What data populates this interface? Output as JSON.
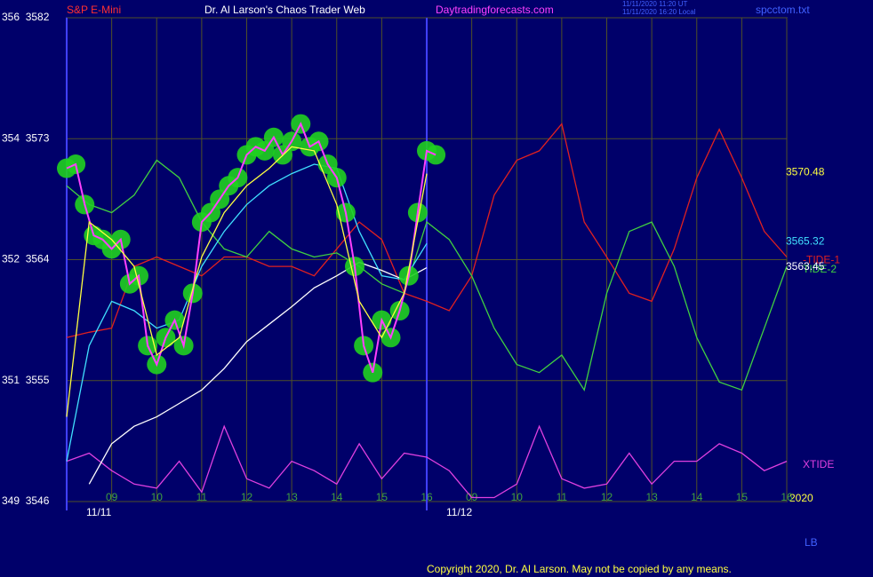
{
  "chart_data": {
    "type": "line",
    "title": "Dr. Al Larson's Chaos Trader Web",
    "subtitle": "S&P E-Mini",
    "site": "Daytradingforecasts.com",
    "time_lines": [
      "11/11/2020 11:20 UT",
      "11/11/2020 16:20 Local"
    ],
    "file": "spcctom.txt",
    "copyright": "Copyright 2020, Dr. Al Larson. May not be copied by any means.",
    "corner_label": "LB",
    "year_label": "2020",
    "dates": [
      {
        "value": 0,
        "label": "11/11"
      },
      {
        "value": 8,
        "label": "11/12"
      }
    ],
    "right_labels": [
      {
        "value": 3570.48,
        "label": "3570.48",
        "color": "#ffff40"
      },
      {
        "value": 3565.32,
        "label": "3565.32",
        "color": "#40e0ff"
      },
      {
        "value": 3563.45,
        "label": "3563.45",
        "color": "#ffffff"
      }
    ],
    "xlim": [
      0,
      16
    ],
    "ylim": [
      3546,
      3582
    ],
    "grid": true,
    "xticks": [
      {
        "value": 1,
        "label": "09"
      },
      {
        "value": 2,
        "label": "10"
      },
      {
        "value": 3,
        "label": "11"
      },
      {
        "value": 4,
        "label": "12"
      },
      {
        "value": 5,
        "label": "13"
      },
      {
        "value": 6,
        "label": "14"
      },
      {
        "value": 7,
        "label": "15"
      },
      {
        "value": 8,
        "label": "16"
      },
      {
        "value": 9,
        "label": "09"
      },
      {
        "value": 10,
        "label": "10"
      },
      {
        "value": 11,
        "label": "11"
      },
      {
        "value": 12,
        "label": "12"
      },
      {
        "value": 13,
        "label": "13"
      },
      {
        "value": 14,
        "label": "14"
      },
      {
        "value": 15,
        "label": "15"
      },
      {
        "value": 16,
        "label": "16"
      }
    ],
    "yticks": [
      {
        "value": 3582,
        "label": "356  3582"
      },
      {
        "value": 3573,
        "label": "354  3573"
      },
      {
        "value": 3564,
        "label": "352  3564"
      },
      {
        "value": 3555,
        "label": "351  3555"
      },
      {
        "value": 3546,
        "label": "349  3546"
      }
    ],
    "series": [
      {
        "name": "-TIDE-1",
        "color": "#e02020",
        "x": [
          0,
          0.5,
          1,
          1.5,
          2,
          2.5,
          3,
          3.5,
          4,
          4.5,
          5,
          5.5,
          6,
          6.5,
          7,
          7.5,
          8,
          8.5,
          9,
          9.5,
          10,
          10.5,
          11,
          11.5,
          12,
          12.5,
          13,
          13.5,
          14,
          14.5,
          15,
          15.5,
          16
        ],
        "values": [
          3558.2,
          3558.6,
          3558.9,
          3563.5,
          3564.2,
          3563.5,
          3562.8,
          3564.2,
          3564.2,
          3563.5,
          3563.5,
          3562.8,
          3564.8,
          3566.8,
          3565.5,
          3561.5,
          3560.9,
          3560.2,
          3562.8,
          3568.8,
          3571.4,
          3572.1,
          3574.1,
          3566.8,
          3564.2,
          3561.5,
          3560.9,
          3564.8,
          3570.1,
          3573.7,
          3570.1,
          3566.1,
          3564.2
        ]
      },
      {
        "name": "TIDE-2",
        "color": "#40d040",
        "x": [
          0,
          0.5,
          1,
          1.5,
          2,
          2.5,
          3,
          3.5,
          4,
          4.5,
          5,
          5.5,
          6,
          6.5,
          7,
          7.5,
          8,
          8.5,
          9,
          9.5,
          10,
          10.5,
          11,
          11.5,
          12,
          12.5,
          13,
          13.5,
          14,
          14.5,
          15,
          15.5,
          16
        ],
        "values": [
          3569.5,
          3568.1,
          3567.5,
          3568.8,
          3571.4,
          3570.1,
          3566.8,
          3564.8,
          3564.2,
          3566.1,
          3564.8,
          3564.2,
          3564.5,
          3563.5,
          3562.2,
          3561.5,
          3566.8,
          3565.5,
          3562.8,
          3558.9,
          3556.2,
          3555.6,
          3556.9,
          3554.3,
          3561.5,
          3566.1,
          3566.8,
          3563.5,
          3558.2,
          3554.9,
          3554.3,
          3558.9,
          3563.5
        ]
      },
      {
        "name": "XTIDE",
        "color": "#e040e0",
        "x": [
          0,
          0.5,
          1,
          1.5,
          2,
          2.5,
          3,
          3.5,
          4,
          4.5,
          5,
          5.5,
          6,
          6.5,
          7,
          7.5,
          8,
          8.5,
          9,
          9.5,
          10,
          10.5,
          11,
          11.5,
          12,
          12.5,
          13,
          13.5,
          14,
          14.5,
          15,
          15.5,
          16
        ],
        "values": [
          3549.0,
          3549.6,
          3548.3,
          3547.3,
          3547.0,
          3549.0,
          3546.7,
          3551.6,
          3547.7,
          3547.0,
          3549.0,
          3548.3,
          3547.3,
          3550.3,
          3547.7,
          3549.6,
          3549.3,
          3548.3,
          3546.3,
          3546.3,
          3547.3,
          3551.6,
          3547.7,
          3547.0,
          3547.3,
          3549.6,
          3547.3,
          3549.0,
          3549.0,
          3550.3,
          3549.6,
          3548.3,
          3549.0
        ]
      },
      {
        "color": "#ffffff",
        "x": [
          0.5,
          1,
          1.5,
          2,
          2.5,
          3,
          3.5,
          4,
          4.5,
          5,
          5.5,
          6,
          6.5,
          7,
          7.5,
          8
        ],
        "values": [
          3547.3,
          3550.3,
          3551.6,
          3552.3,
          3553.3,
          3554.3,
          3555.9,
          3557.9,
          3559.2,
          3560.5,
          3561.9,
          3562.8,
          3563.8,
          3563.2,
          3562.5,
          3563.4
        ]
      },
      {
        "color": "#40e0ff",
        "x": [
          0,
          0.5,
          1,
          1.5,
          2,
          2.5,
          3,
          3.5,
          4,
          4.5,
          5,
          5.5,
          6,
          6.5,
          7,
          7.5,
          8
        ],
        "values": [
          3549.0,
          3557.6,
          3560.9,
          3560.2,
          3558.9,
          3559.5,
          3563.5,
          3566.1,
          3568.1,
          3569.5,
          3570.4,
          3571.1,
          3570.8,
          3566.1,
          3562.8,
          3562.5,
          3565.2
        ]
      },
      {
        "color": "#ff40ff",
        "style": "blobs",
        "x": [
          0,
          0.2,
          0.4,
          0.6,
          0.8,
          1,
          1.2,
          1.4,
          1.6,
          1.8,
          2,
          2.2,
          2.4,
          2.6,
          2.8,
          3,
          3.2,
          3.4,
          3.6,
          3.8,
          4,
          4.2,
          4.4,
          4.6,
          4.8,
          5,
          5.2,
          5.4,
          5.6,
          5.8,
          6,
          6.2,
          6.4,
          6.6,
          6.8,
          7,
          7.2,
          7.4,
          7.6,
          7.8,
          8,
          8.2
        ],
        "values": [
          3570.8,
          3571.1,
          3568.1,
          3565.8,
          3565.5,
          3564.8,
          3565.5,
          3562.2,
          3562.8,
          3557.6,
          3556.2,
          3558.2,
          3559.5,
          3557.6,
          3561.5,
          3566.8,
          3567.5,
          3568.5,
          3569.5,
          3570.1,
          3571.8,
          3572.4,
          3572.1,
          3573.1,
          3571.8,
          3572.8,
          3574.1,
          3572.4,
          3572.8,
          3571.1,
          3570.1,
          3567.5,
          3563.5,
          3557.6,
          3555.6,
          3559.5,
          3558.2,
          3560.2,
          3562.8,
          3567.5,
          3572.1,
          3571.8
        ]
      },
      {
        "color": "#ffff40",
        "x": [
          0,
          0.5,
          1,
          1.5,
          2,
          2.5,
          3,
          3.5,
          4,
          4.5,
          5,
          5.5,
          6,
          6.5,
          7,
          7.5,
          8
        ],
        "values": [
          3552.3,
          3566.8,
          3565.5,
          3563.5,
          3556.9,
          3558.2,
          3564.2,
          3567.5,
          3569.5,
          3570.8,
          3572.4,
          3572.1,
          3568.1,
          3560.9,
          3558.2,
          3561.5,
          3570.4
        ]
      }
    ]
  }
}
